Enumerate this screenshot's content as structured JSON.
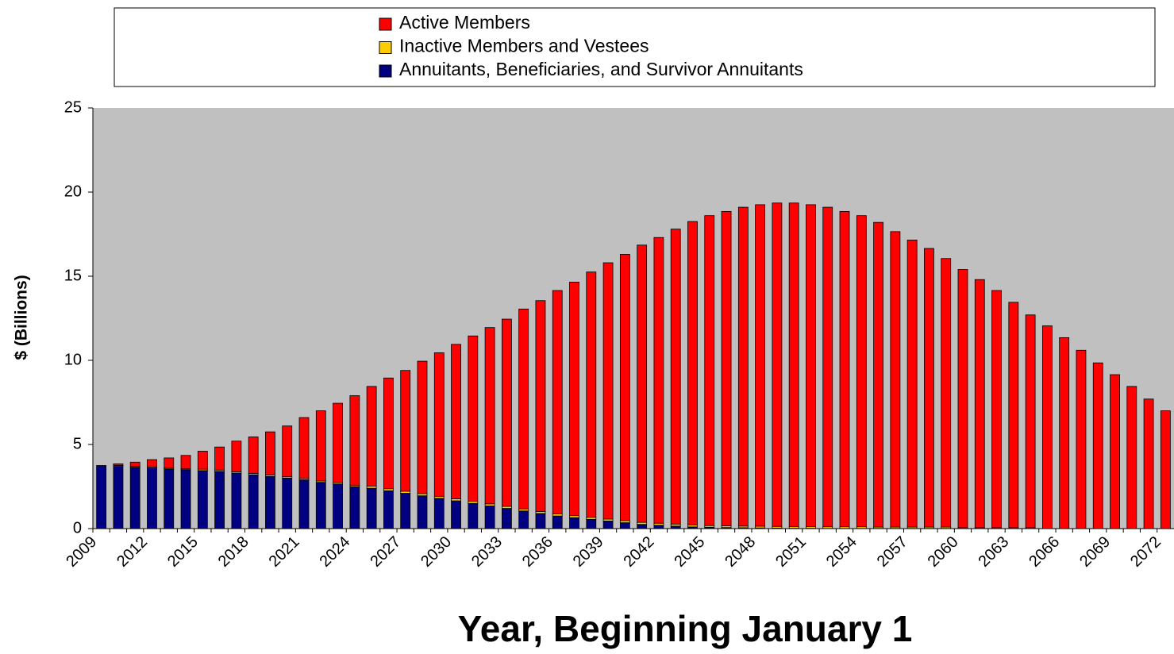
{
  "chart_data": {
    "type": "stacked-bar",
    "ylabel": "$ (Billions)",
    "xlabel": "Year, Beginning January 1",
    "categories": [
      "2009",
      null,
      null,
      "2012",
      null,
      null,
      "2015",
      null,
      null,
      "2018",
      null,
      null,
      "2021",
      null,
      null,
      "2024",
      null,
      null,
      "2027",
      null,
      null,
      "2030",
      null,
      null,
      "2033",
      null,
      null,
      "2036",
      null,
      null,
      "2039",
      null,
      null,
      "2042",
      null,
      null,
      "2045",
      null,
      null,
      "2048",
      null,
      null,
      "2051",
      null,
      null,
      "2054",
      null,
      null,
      "2057",
      null,
      null,
      "2060",
      null,
      null,
      "2063",
      null,
      null,
      "2066",
      null,
      null,
      "2069",
      null,
      null,
      "2072"
    ],
    "series": [
      {
        "name": "Active Members",
        "color": "#ff0000",
        "values": [
          0,
          0.1,
          0.25,
          0.45,
          0.6,
          0.8,
          1.07,
          1.37,
          1.82,
          2.17,
          2.57,
          3.02,
          3.62,
          4.17,
          4.72,
          5.32,
          5.93,
          6.58,
          7.18,
          7.88,
          8.53,
          9.18,
          9.83,
          10.48,
          11.13,
          11.88,
          12.53,
          13.28,
          13.88,
          14.58,
          15.23,
          15.83,
          16.48,
          16.98,
          17.53,
          18.03,
          18.42,
          18.69,
          18.95,
          19.11,
          19.22,
          19.23,
          19.13,
          18.99,
          18.74,
          18.49,
          18.11,
          17.56,
          17.06,
          16.56,
          15.96,
          15.35,
          14.75,
          14.1,
          13.4,
          12.65,
          12.05,
          11.35,
          10.6,
          9.85,
          9.15,
          8.45,
          7.7,
          7.0
        ]
      },
      {
        "name": "Inactive Members and Vestees",
        "color": "#ffcc00",
        "values": [
          0,
          0.05,
          0.05,
          0.05,
          0.05,
          0.05,
          0.08,
          0.08,
          0.08,
          0.08,
          0.08,
          0.08,
          0.08,
          0.08,
          0.08,
          0.08,
          0.12,
          0.12,
          0.12,
          0.12,
          0.12,
          0.12,
          0.12,
          0.12,
          0.12,
          0.12,
          0.12,
          0.12,
          0.12,
          0.12,
          0.12,
          0.12,
          0.12,
          0.12,
          0.12,
          0.12,
          0.1,
          0.1,
          0.1,
          0.1,
          0.1,
          0.1,
          0.1,
          0.1,
          0.1,
          0.1,
          0.08,
          0.08,
          0.08,
          0.08,
          0.08,
          0.05,
          0.05,
          0.05,
          0.05,
          0.05,
          0,
          0,
          0,
          0,
          0,
          0,
          0,
          0
        ]
      },
      {
        "name": "Annuitants, Beneficiaries, and Survivor Annuitants",
        "color": "#000080",
        "values": [
          3.75,
          3.7,
          3.65,
          3.6,
          3.55,
          3.5,
          3.45,
          3.4,
          3.3,
          3.2,
          3.1,
          3.0,
          2.9,
          2.75,
          2.65,
          2.5,
          2.4,
          2.25,
          2.1,
          1.95,
          1.8,
          1.65,
          1.5,
          1.35,
          1.2,
          1.05,
          0.9,
          0.75,
          0.65,
          0.55,
          0.45,
          0.35,
          0.25,
          0.2,
          0.15,
          0.1,
          0.08,
          0.06,
          0.05,
          0.04,
          0.03,
          0.02,
          0.02,
          0.01,
          0.01,
          0.01,
          0.01,
          0.01,
          0.01,
          0.01,
          0.01,
          0,
          0,
          0,
          0,
          0,
          0,
          0,
          0,
          0,
          0,
          0,
          0,
          0
        ]
      }
    ],
    "ylim": [
      0,
      25
    ],
    "yticks": [
      0,
      5,
      10,
      15,
      20,
      25
    ],
    "plot_background": "#c0c0c0"
  }
}
